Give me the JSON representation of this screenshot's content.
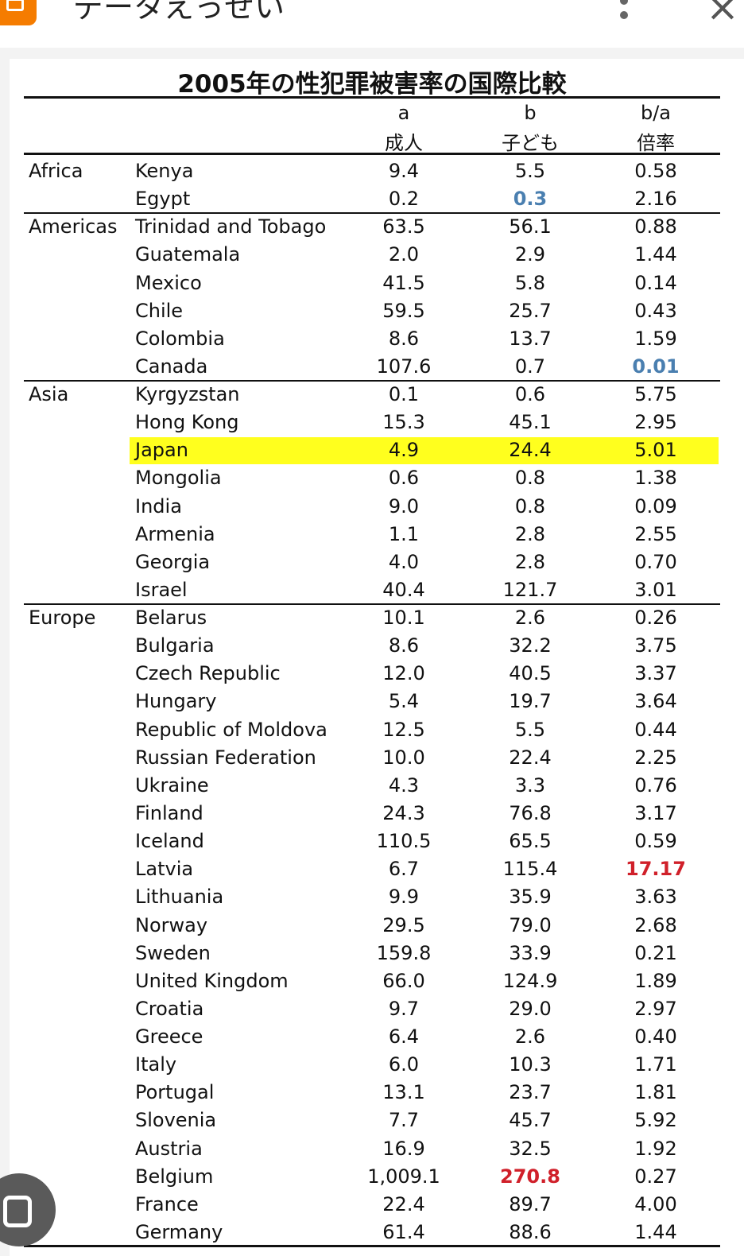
{
  "browser": {
    "site_title": "データえっせい",
    "menu_icon": "kebab-icon",
    "close_icon": "close-icon"
  },
  "table": {
    "title": "2005年の性犯罪被害率の国際比較",
    "headers": {
      "a_key": "a",
      "a_label": "成人",
      "b_key": "b",
      "b_label": "子ども",
      "r_key": "b/a",
      "r_label": "倍率"
    },
    "groups": [
      {
        "region": "Africa",
        "rows": [
          {
            "country": "Kenya",
            "a": "9.4",
            "b": "5.5",
            "r": "0.58"
          },
          {
            "country": "Egypt",
            "a": "0.2",
            "b": "0.3",
            "r": "2.16",
            "b_style": "blue"
          }
        ]
      },
      {
        "region": "Americas",
        "rows": [
          {
            "country": "Trinidad and Tobago",
            "a": "63.5",
            "b": "56.1",
            "r": "0.88"
          },
          {
            "country": "Guatemala",
            "a": "2.0",
            "b": "2.9",
            "r": "1.44"
          },
          {
            "country": "Mexico",
            "a": "41.5",
            "b": "5.8",
            "r": "0.14"
          },
          {
            "country": "Chile",
            "a": "59.5",
            "b": "25.7",
            "r": "0.43"
          },
          {
            "country": "Colombia",
            "a": "8.6",
            "b": "13.7",
            "r": "1.59"
          },
          {
            "country": "Canada",
            "a": "107.6",
            "b": "0.7",
            "r": "0.01",
            "r_style": "blue"
          }
        ]
      },
      {
        "region": "Asia",
        "rows": [
          {
            "country": "Kyrgyzstan",
            "a": "0.1",
            "b": "0.6",
            "r": "5.75"
          },
          {
            "country": "Hong Kong",
            "a": "15.3",
            "b": "45.1",
            "r": "2.95"
          },
          {
            "country": "Japan",
            "a": "4.9",
            "b": "24.4",
            "r": "5.01",
            "highlight": true
          },
          {
            "country": "Mongolia",
            "a": "0.6",
            "b": "0.8",
            "r": "1.38"
          },
          {
            "country": "India",
            "a": "9.0",
            "b": "0.8",
            "r": "0.09"
          },
          {
            "country": "Armenia",
            "a": "1.1",
            "b": "2.8",
            "r": "2.55"
          },
          {
            "country": "Georgia",
            "a": "4.0",
            "b": "2.8",
            "r": "0.70"
          },
          {
            "country": "Israel",
            "a": "40.4",
            "b": "121.7",
            "r": "3.01"
          }
        ]
      },
      {
        "region": "Europe",
        "rows": [
          {
            "country": "Belarus",
            "a": "10.1",
            "b": "2.6",
            "r": "0.26"
          },
          {
            "country": "Bulgaria",
            "a": "8.6",
            "b": "32.2",
            "r": "3.75"
          },
          {
            "country": "Czech Republic",
            "a": "12.0",
            "b": "40.5",
            "r": "3.37"
          },
          {
            "country": "Hungary",
            "a": "5.4",
            "b": "19.7",
            "r": "3.64"
          },
          {
            "country": "Republic of Moldova",
            "a": "12.5",
            "b": "5.5",
            "r": "0.44"
          },
          {
            "country": "Russian Federation",
            "a": "10.0",
            "b": "22.4",
            "r": "2.25"
          },
          {
            "country": "Ukraine",
            "a": "4.3",
            "b": "3.3",
            "r": "0.76"
          },
          {
            "country": "Finland",
            "a": "24.3",
            "b": "76.8",
            "r": "3.17"
          },
          {
            "country": "Iceland",
            "a": "110.5",
            "b": "65.5",
            "r": "0.59"
          },
          {
            "country": "Latvia",
            "a": "6.7",
            "b": "115.4",
            "r": "17.17",
            "r_style": "red"
          },
          {
            "country": "Lithuania",
            "a": "9.9",
            "b": "35.9",
            "r": "3.63"
          },
          {
            "country": "Norway",
            "a": "29.5",
            "b": "79.0",
            "r": "2.68"
          },
          {
            "country": "Sweden",
            "a": "159.8",
            "b": "33.9",
            "r": "0.21"
          },
          {
            "country": "United Kingdom",
            "a": "66.0",
            "b": "124.9",
            "r": "1.89"
          },
          {
            "country": "Croatia",
            "a": "9.7",
            "b": "29.0",
            "r": "2.97"
          },
          {
            "country": "Greece",
            "a": "6.4",
            "b": "2.6",
            "r": "0.40"
          },
          {
            "country": "Italy",
            "a": "6.0",
            "b": "10.3",
            "r": "1.71"
          },
          {
            "country": "Portugal",
            "a": "13.1",
            "b": "23.7",
            "r": "1.81"
          },
          {
            "country": "Slovenia",
            "a": "7.7",
            "b": "45.7",
            "r": "5.92"
          },
          {
            "country": "Austria",
            "a": "16.9",
            "b": "32.5",
            "r": "1.92"
          },
          {
            "country": "Belgium",
            "a": "1,009.1",
            "b": "270.8",
            "r": "0.27",
            "b_style": "red"
          },
          {
            "country": "France",
            "a": "22.4",
            "b": "89.7",
            "r": "4.00"
          },
          {
            "country": "Germany",
            "a": "61.4",
            "b": "88.6",
            "r": "1.44"
          }
        ]
      }
    ]
  }
}
